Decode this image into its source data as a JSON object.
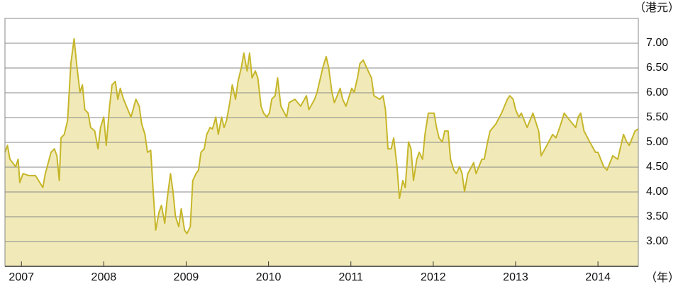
{
  "chart_data": {
    "type": "area",
    "y_unit_label": "（港元）",
    "x_unit_label": "（年）",
    "color": "#c6b62a",
    "fill": "#f1eab8",
    "grid": true,
    "xlim": [
      2006.8,
      2014.49
    ],
    "xticks": [
      2007,
      2008,
      2009,
      2010,
      2011,
      2012,
      2013,
      2014
    ],
    "ylim": [
      2.5,
      7.5
    ],
    "yticks": [
      {
        "value": 3,
        "label": "3.00"
      },
      {
        "value": 3.5,
        "label": "3.50"
      },
      {
        "value": 4,
        "label": "4.00"
      },
      {
        "value": 4.5,
        "label": "4.50"
      },
      {
        "value": 5,
        "label": "5.00"
      },
      {
        "value": 5.5,
        "label": "5.50"
      },
      {
        "value": 6,
        "label": "6.00"
      },
      {
        "value": 6.5,
        "label": "6.50"
      },
      {
        "value": 7,
        "label": "7.00"
      }
    ],
    "x": [
      2006.8,
      2006.83,
      2006.86,
      2006.93,
      2006.96,
      2006.98,
      2007.02,
      2007.09,
      2007.17,
      2007.26,
      2007.29,
      2007.36,
      2007.4,
      2007.43,
      2007.46,
      2007.48,
      2007.52,
      2007.56,
      2007.6,
      2007.64,
      2007.67,
      2007.71,
      2007.74,
      2007.77,
      2007.81,
      2007.84,
      2007.89,
      2007.93,
      2007.96,
      2008.0,
      2008.03,
      2008.07,
      2008.1,
      2008.14,
      2008.17,
      2008.2,
      2008.24,
      2008.31,
      2008.33,
      2008.39,
      2008.43,
      2008.46,
      2008.5,
      2008.53,
      2008.57,
      2008.6,
      2008.63,
      2008.67,
      2008.7,
      2008.74,
      2008.77,
      2008.81,
      2008.84,
      2008.87,
      2008.91,
      2008.94,
      2008.98,
      2009.01,
      2009.05,
      2009.08,
      2009.12,
      2009.15,
      2009.18,
      2009.22,
      2009.25,
      2009.29,
      2009.32,
      2009.36,
      2009.39,
      2009.43,
      2009.46,
      2009.49,
      2009.53,
      2009.56,
      2009.6,
      2009.63,
      2009.67,
      2009.7,
      2009.74,
      2009.77,
      2009.8,
      2009.84,
      2009.87,
      2009.91,
      2009.94,
      2009.98,
      2010.01,
      2010.04,
      2010.08,
      2010.11,
      2010.15,
      2010.22,
      2010.25,
      2010.32,
      2010.39,
      2010.46,
      2010.49,
      2010.56,
      2010.59,
      2010.63,
      2010.66,
      2010.7,
      2010.73,
      2010.77,
      2010.8,
      2010.87,
      2010.9,
      2010.94,
      2011.01,
      2011.04,
      2011.08,
      2011.11,
      2011.15,
      2011.21,
      2011.25,
      2011.28,
      2011.35,
      2011.39,
      2011.42,
      2011.45,
      2011.49,
      2011.52,
      2011.56,
      2011.59,
      2011.63,
      2011.66,
      2011.7,
      2011.73,
      2011.76,
      2011.8,
      2011.83,
      2011.87,
      2011.9,
      2011.94,
      2012.01,
      2012.04,
      2012.07,
      2012.11,
      2012.14,
      2012.18,
      2012.21,
      2012.25,
      2012.28,
      2012.32,
      2012.35,
      2012.38,
      2012.42,
      2012.49,
      2012.52,
      2012.59,
      2012.62,
      2012.66,
      2012.69,
      2012.76,
      2012.83,
      2012.9,
      2012.93,
      2012.97,
      2013.0,
      2013.04,
      2013.07,
      2013.14,
      2013.21,
      2013.28,
      2013.31,
      2013.38,
      2013.45,
      2013.49,
      2013.55,
      2013.59,
      2013.66,
      2013.73,
      2013.76,
      2013.79,
      2013.83,
      2013.9,
      2013.97,
      2014.0,
      2014.07,
      2014.11,
      2014.18,
      2014.24,
      2014.31,
      2014.35,
      2014.38,
      2014.45,
      2014.49
    ],
    "values": [
      4.8,
      4.94,
      4.66,
      4.51,
      4.66,
      4.19,
      4.37,
      4.33,
      4.33,
      4.09,
      4.37,
      4.8,
      4.87,
      4.73,
      4.23,
      5.09,
      5.16,
      5.44,
      6.59,
      7.09,
      6.59,
      6.01,
      6.16,
      5.66,
      5.59,
      5.3,
      5.23,
      4.87,
      5.3,
      5.51,
      4.94,
      5.73,
      6.16,
      6.23,
      5.87,
      6.09,
      5.87,
      5.59,
      5.51,
      5.87,
      5.73,
      5.37,
      5.16,
      4.8,
      4.84,
      4.01,
      3.23,
      3.59,
      3.73,
      3.37,
      3.87,
      4.37,
      4.01,
      3.51,
      3.3,
      3.66,
      3.23,
      3.16,
      3.3,
      4.23,
      4.37,
      4.44,
      4.8,
      4.87,
      5.16,
      5.3,
      5.27,
      5.51,
      5.16,
      5.51,
      5.3,
      5.44,
      5.8,
      6.16,
      5.87,
      6.23,
      6.51,
      6.8,
      6.44,
      6.8,
      6.3,
      6.44,
      6.3,
      5.73,
      5.59,
      5.51,
      5.59,
      5.87,
      5.94,
      6.3,
      5.73,
      5.51,
      5.8,
      5.87,
      5.73,
      5.94,
      5.66,
      5.87,
      6.01,
      6.3,
      6.51,
      6.73,
      6.51,
      6.01,
      5.8,
      6.09,
      5.87,
      5.73,
      6.09,
      6.01,
      6.3,
      6.59,
      6.66,
      6.44,
      6.3,
      5.94,
      5.87,
      5.94,
      5.66,
      4.87,
      4.87,
      5.09,
      4.51,
      3.87,
      4.23,
      4.09,
      5.01,
      4.87,
      4.23,
      4.66,
      4.8,
      4.66,
      5.16,
      5.59,
      5.59,
      5.3,
      5.09,
      5.01,
      5.23,
      5.23,
      4.66,
      4.44,
      4.37,
      4.51,
      4.37,
      4.01,
      4.37,
      4.59,
      4.37,
      4.66,
      4.66,
      5.01,
      5.23,
      5.37,
      5.59,
      5.87,
      5.94,
      5.87,
      5.66,
      5.51,
      5.59,
      5.3,
      5.59,
      5.23,
      4.73,
      4.94,
      5.16,
      5.09,
      5.37,
      5.59,
      5.44,
      5.3,
      5.51,
      5.59,
      5.23,
      5.01,
      4.8,
      4.8,
      4.51,
      4.44,
      4.73,
      4.66,
      5.16,
      5.01,
      4.94,
      5.23,
      5.27
    ]
  }
}
